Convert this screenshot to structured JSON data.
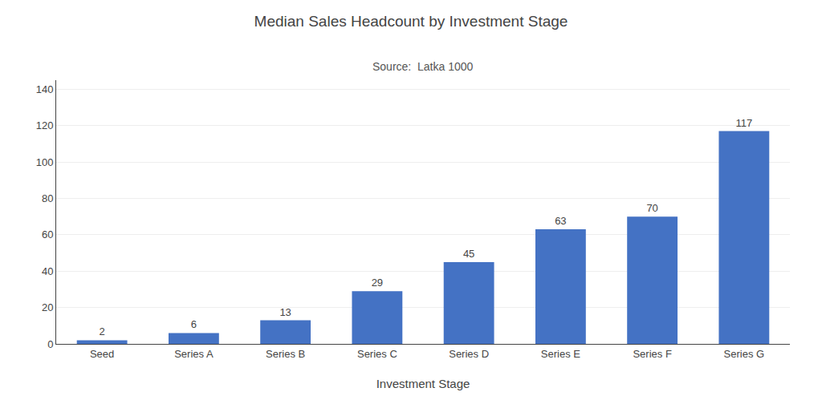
{
  "chart_data": {
    "type": "bar",
    "title": "Median Sales Headcount by Investment Stage",
    "subtitle": "Source:  Latka 1000",
    "xlabel": "Investment Stage",
    "categories": [
      "Seed",
      "Series A",
      "Series B",
      "Series C",
      "Series D",
      "Series E",
      "Series F",
      "Series G"
    ],
    "values": [
      2,
      6,
      13,
      29,
      45,
      63,
      70,
      117
    ],
    "color": "#4472C4",
    "ylim": [
      0,
      145
    ],
    "yticks": [
      0,
      20,
      40,
      60,
      80,
      100,
      120,
      140
    ],
    "grid": true,
    "data_labels": true
  }
}
